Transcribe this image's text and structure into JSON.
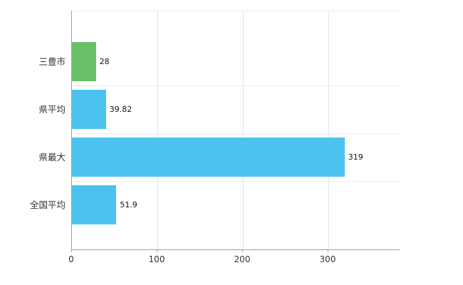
{
  "chart_data": {
    "type": "bar",
    "orientation": "horizontal",
    "title": "",
    "categories": [
      "三豊市",
      "県平均",
      "県最大",
      "全国平均"
    ],
    "values": [
      28,
      39.82,
      319,
      51.9
    ],
    "value_labels": [
      "28",
      "39.82",
      "319",
      "51.9"
    ],
    "bar_colors": [
      "#6abf69",
      "#4cc3ef",
      "#4cc3ef",
      "#4cc3ef"
    ],
    "x_ticks": [
      0,
      100,
      200,
      300
    ],
    "x_tick_labels": [
      "0",
      "100",
      "200",
      "300"
    ],
    "xlim": [
      0,
      383.33
    ],
    "xlabel": "",
    "ylabel": "",
    "grid": true,
    "legend": false,
    "axis_color": "#9f9f9f",
    "gridline_color": "#e2e2e2",
    "row_line_color": "#ececec"
  }
}
